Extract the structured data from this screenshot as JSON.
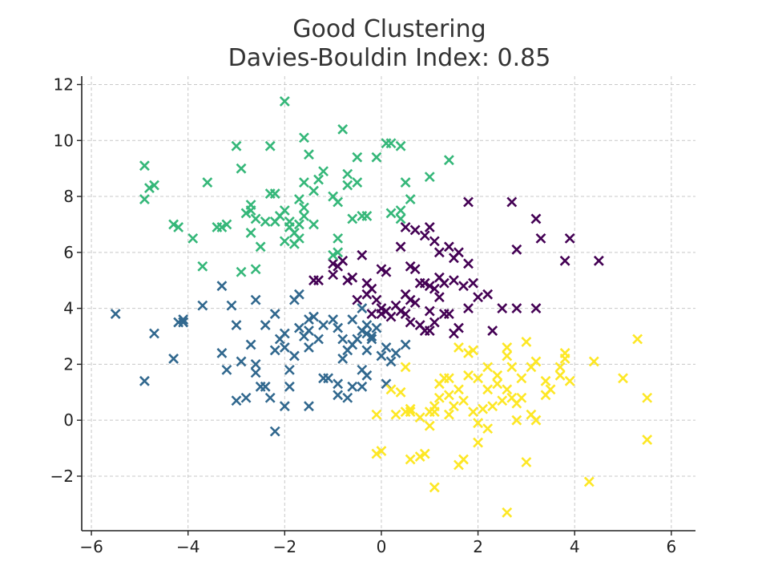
{
  "chart_data": {
    "type": "scatter",
    "title": "Good Clustering",
    "subtitle": "Davies-Bouldin Index: 0.85",
    "xlabel": "",
    "ylabel": "",
    "xlim": [
      -6.2,
      6.5
    ],
    "ylim": [
      -3.95,
      12.3
    ],
    "xticks": [
      -6,
      -4,
      -2,
      0,
      2,
      4,
      6
    ],
    "yticks": [
      -2,
      0,
      2,
      4,
      6,
      8,
      10,
      12
    ],
    "xtick_labels": [
      "−6",
      "−4",
      "−2",
      "0",
      "2",
      "4",
      "6"
    ],
    "ytick_labels": [
      "−2",
      "0",
      "2",
      "4",
      "6",
      "8",
      "10",
      "12"
    ],
    "grid": true,
    "legend": "none",
    "marker": "x",
    "series": [
      {
        "color": "#440154",
        "points": [
          [
            -1.4,
            5.0
          ],
          [
            -1.3,
            5.0
          ],
          [
            -1.0,
            5.2
          ],
          [
            -1.0,
            5.6
          ],
          [
            -0.9,
            5.5
          ],
          [
            -0.8,
            5.7
          ],
          [
            -0.6,
            5.1
          ],
          [
            -0.4,
            5.9
          ],
          [
            -0.3,
            4.9
          ],
          [
            -0.2,
            4.7
          ],
          [
            -0.1,
            4.3
          ],
          [
            0.0,
            5.4
          ],
          [
            0.1,
            5.3
          ],
          [
            0.0,
            4.0
          ],
          [
            0.1,
            3.9
          ],
          [
            0.0,
            3.8
          ],
          [
            -0.2,
            3.8
          ],
          [
            0.3,
            4.1
          ],
          [
            0.5,
            4.5
          ],
          [
            0.6,
            4.3
          ],
          [
            0.7,
            4.2
          ],
          [
            0.5,
            3.8
          ],
          [
            0.4,
            3.9
          ],
          [
            0.6,
            5.5
          ],
          [
            0.7,
            5.4
          ],
          [
            0.8,
            4.9
          ],
          [
            0.9,
            4.9
          ],
          [
            1.0,
            4.8
          ],
          [
            1.1,
            4.7
          ],
          [
            1.2,
            5.1
          ],
          [
            1.3,
            4.9
          ],
          [
            1.5,
            5.0
          ],
          [
            1.7,
            4.8
          ],
          [
            1.8,
            5.6
          ],
          [
            1.9,
            4.9
          ],
          [
            2.0,
            4.4
          ],
          [
            2.2,
            4.5
          ],
          [
            2.5,
            4.0
          ],
          [
            2.8,
            4.0
          ],
          [
            3.2,
            4.0
          ],
          [
            0.4,
            6.2
          ],
          [
            0.7,
            6.8
          ],
          [
            0.9,
            6.6
          ],
          [
            1.1,
            6.4
          ],
          [
            1.2,
            6.0
          ],
          [
            1.4,
            6.2
          ],
          [
            1.5,
            5.8
          ],
          [
            1.6,
            6.0
          ],
          [
            1.0,
            6.9
          ],
          [
            0.5,
            6.9
          ],
          [
            0.8,
            3.4
          ],
          [
            0.9,
            3.2
          ],
          [
            1.0,
            3.2
          ],
          [
            1.1,
            3.5
          ],
          [
            1.3,
            3.8
          ],
          [
            1.4,
            3.8
          ],
          [
            1.5,
            3.1
          ],
          [
            1.6,
            3.3
          ],
          [
            1.8,
            4.0
          ],
          [
            2.3,
            3.2
          ],
          [
            2.7,
            7.8
          ],
          [
            2.8,
            6.1
          ],
          [
            3.2,
            7.2
          ],
          [
            3.3,
            6.5
          ],
          [
            3.8,
            5.7
          ],
          [
            3.9,
            6.5
          ],
          [
            4.5,
            5.7
          ],
          [
            1.8,
            7.8
          ],
          [
            -0.5,
            4.3
          ],
          [
            -0.3,
            4.5
          ],
          [
            0.2,
            3.7
          ],
          [
            -0.7,
            5.0
          ],
          [
            1.0,
            3.9
          ],
          [
            0.6,
            3.5
          ],
          [
            1.2,
            4.4
          ]
        ]
      },
      {
        "color": "#31688e",
        "points": [
          [
            -5.5,
            3.8
          ],
          [
            -4.9,
            1.4
          ],
          [
            -4.7,
            3.1
          ],
          [
            -4.3,
            2.2
          ],
          [
            -4.2,
            3.5
          ],
          [
            -4.1,
            3.5
          ],
          [
            -4.1,
            3.6
          ],
          [
            -3.7,
            4.1
          ],
          [
            -3.3,
            4.8
          ],
          [
            -3.3,
            2.4
          ],
          [
            -3.2,
            1.8
          ],
          [
            -3.1,
            4.1
          ],
          [
            -3.0,
            3.4
          ],
          [
            -3.0,
            0.7
          ],
          [
            -2.8,
            0.8
          ],
          [
            -2.7,
            2.7
          ],
          [
            -2.6,
            2.0
          ],
          [
            -2.6,
            1.7
          ],
          [
            -2.5,
            1.2
          ],
          [
            -2.4,
            1.2
          ],
          [
            -2.6,
            4.3
          ],
          [
            -2.4,
            3.4
          ],
          [
            -2.2,
            3.8
          ],
          [
            -2.2,
            2.5
          ],
          [
            -2.1,
            2.9
          ],
          [
            -2.0,
            3.1
          ],
          [
            -2.0,
            2.6
          ],
          [
            -1.9,
            1.8
          ],
          [
            -1.9,
            1.2
          ],
          [
            -1.8,
            2.3
          ],
          [
            -1.7,
            3.3
          ],
          [
            -1.6,
            3.0
          ],
          [
            -1.5,
            3.2
          ],
          [
            -1.5,
            3.6
          ],
          [
            -1.5,
            2.6
          ],
          [
            -1.3,
            2.9
          ],
          [
            -1.2,
            1.5
          ],
          [
            -1.1,
            1.5
          ],
          [
            -0.9,
            1.3
          ],
          [
            -1.0,
            3.6
          ],
          [
            -0.9,
            3.3
          ],
          [
            -0.8,
            2.9
          ],
          [
            -0.7,
            2.5
          ],
          [
            -0.6,
            2.7
          ],
          [
            -0.5,
            2.9
          ],
          [
            -0.4,
            3.2
          ],
          [
            -0.3,
            2.5
          ],
          [
            -0.2,
            3.0
          ],
          [
            -0.1,
            3.3
          ],
          [
            0.0,
            2.3
          ],
          [
            0.1,
            2.6
          ],
          [
            0.2,
            2.1
          ],
          [
            0.5,
            2.7
          ],
          [
            -0.4,
            1.2
          ],
          [
            -0.3,
            1.6
          ],
          [
            -0.6,
            1.2
          ],
          [
            -0.6,
            3.6
          ],
          [
            -0.3,
            3.4
          ],
          [
            -0.2,
            2.9
          ],
          [
            -0.4,
            4.0
          ],
          [
            -1.8,
            4.3
          ],
          [
            -1.7,
            4.5
          ],
          [
            -2.3,
            0.8
          ],
          [
            -2.0,
            0.5
          ],
          [
            -2.2,
            -0.4
          ],
          [
            -1.5,
            0.5
          ],
          [
            -0.9,
            0.9
          ],
          [
            -0.7,
            0.8
          ],
          [
            -0.4,
            1.8
          ],
          [
            -0.8,
            2.2
          ],
          [
            0.1,
            1.3
          ],
          [
            -1.4,
            3.7
          ],
          [
            -2.9,
            2.1
          ],
          [
            -1.2,
            3.4
          ],
          [
            0.3,
            2.4
          ],
          [
            -0.3,
            3.1
          ]
        ]
      },
      {
        "color": "#35b779",
        "points": [
          [
            -4.9,
            9.1
          ],
          [
            -4.8,
            8.3
          ],
          [
            -4.7,
            8.4
          ],
          [
            -4.9,
            7.9
          ],
          [
            -4.3,
            7.0
          ],
          [
            -4.2,
            6.9
          ],
          [
            -3.9,
            6.5
          ],
          [
            -3.7,
            5.5
          ],
          [
            -3.6,
            8.5
          ],
          [
            -3.4,
            6.9
          ],
          [
            -3.3,
            6.9
          ],
          [
            -3.2,
            7.0
          ],
          [
            -3.0,
            9.8
          ],
          [
            -2.9,
            9.0
          ],
          [
            -2.9,
            5.3
          ],
          [
            -2.8,
            7.4
          ],
          [
            -2.7,
            7.7
          ],
          [
            -2.7,
            7.5
          ],
          [
            -2.7,
            6.7
          ],
          [
            -2.6,
            7.2
          ],
          [
            -2.6,
            5.4
          ],
          [
            -2.5,
            6.2
          ],
          [
            -2.3,
            9.8
          ],
          [
            -2.2,
            8.1
          ],
          [
            -2.2,
            7.1
          ],
          [
            -2.1,
            7.3
          ],
          [
            -2.0,
            6.4
          ],
          [
            -2.0,
            7.5
          ],
          [
            -1.9,
            7.1
          ],
          [
            -1.9,
            6.9
          ],
          [
            -1.8,
            6.3
          ],
          [
            -1.7,
            6.5
          ],
          [
            -1.7,
            7.0
          ],
          [
            -1.6,
            7.6
          ],
          [
            -1.6,
            7.3
          ],
          [
            -1.6,
            8.5
          ],
          [
            -1.5,
            9.5
          ],
          [
            -1.4,
            8.2
          ],
          [
            -1.3,
            8.6
          ],
          [
            -1.2,
            8.9
          ],
          [
            -1.0,
            8.0
          ],
          [
            -0.9,
            7.8
          ],
          [
            -0.9,
            6.5
          ],
          [
            -0.8,
            10.4
          ],
          [
            -0.7,
            8.8
          ],
          [
            -0.7,
            8.4
          ],
          [
            -0.6,
            7.2
          ],
          [
            -0.5,
            9.4
          ],
          [
            -0.5,
            8.5
          ],
          [
            -0.3,
            7.3
          ],
          [
            -0.1,
            9.4
          ],
          [
            0.1,
            9.9
          ],
          [
            0.2,
            9.9
          ],
          [
            0.2,
            7.4
          ],
          [
            0.4,
            7.2
          ],
          [
            0.4,
            9.8
          ],
          [
            0.5,
            8.5
          ],
          [
            0.6,
            7.9
          ],
          [
            0.4,
            7.5
          ],
          [
            1.0,
            8.7
          ],
          [
            1.4,
            9.3
          ],
          [
            -2.0,
            11.4
          ],
          [
            -1.6,
            10.1
          ],
          [
            -1.0,
            5.9
          ],
          [
            -0.9,
            6.0
          ],
          [
            -0.4,
            7.3
          ],
          [
            -1.7,
            7.9
          ],
          [
            -2.3,
            8.1
          ],
          [
            -1.4,
            7.0
          ],
          [
            -1.8,
            6.7
          ],
          [
            -2.4,
            7.1
          ]
        ]
      },
      {
        "color": "#fde725",
        "points": [
          [
            -0.1,
            0.2
          ],
          [
            -0.1,
            -1.2
          ],
          [
            0.0,
            -1.1
          ],
          [
            0.3,
            0.2
          ],
          [
            0.4,
            1.0
          ],
          [
            0.5,
            0.3
          ],
          [
            0.5,
            1.9
          ],
          [
            0.6,
            0.4
          ],
          [
            0.6,
            -1.4
          ],
          [
            0.8,
            0.1
          ],
          [
            0.8,
            -1.3
          ],
          [
            0.9,
            -1.2
          ],
          [
            1.0,
            -0.2
          ],
          [
            1.1,
            0.3
          ],
          [
            1.1,
            0.5
          ],
          [
            1.2,
            0.8
          ],
          [
            1.3,
            1.5
          ],
          [
            1.4,
            1.5
          ],
          [
            1.4,
            0.9
          ],
          [
            1.6,
            2.6
          ],
          [
            1.6,
            1.1
          ],
          [
            1.7,
            -1.4
          ],
          [
            1.6,
            -1.6
          ],
          [
            1.5,
            0.5
          ],
          [
            1.8,
            2.4
          ],
          [
            1.9,
            2.5
          ],
          [
            1.9,
            0.3
          ],
          [
            2.0,
            1.5
          ],
          [
            2.0,
            -0.1
          ],
          [
            2.0,
            -0.8
          ],
          [
            2.2,
            1.9
          ],
          [
            2.2,
            1.1
          ],
          [
            2.3,
            0.5
          ],
          [
            2.4,
            1.6
          ],
          [
            2.5,
            0.7
          ],
          [
            2.6,
            2.6
          ],
          [
            2.6,
            2.3
          ],
          [
            2.7,
            1.9
          ],
          [
            2.7,
            0.8
          ],
          [
            2.8,
            0.6
          ],
          [
            2.8,
            0.0
          ],
          [
            2.9,
            0.8
          ],
          [
            3.0,
            -1.5
          ],
          [
            3.1,
            1.9
          ],
          [
            3.1,
            0.2
          ],
          [
            3.2,
            2.1
          ],
          [
            3.2,
            0.0
          ],
          [
            3.4,
            1.4
          ],
          [
            3.4,
            0.9
          ],
          [
            3.5,
            1.1
          ],
          [
            3.7,
            1.6
          ],
          [
            3.7,
            1.9
          ],
          [
            3.8,
            2.2
          ],
          [
            3.8,
            2.4
          ],
          [
            3.9,
            1.4
          ],
          [
            4.4,
            2.1
          ],
          [
            4.3,
            -2.2
          ],
          [
            5.0,
            1.5
          ],
          [
            5.3,
            2.9
          ],
          [
            5.5,
            0.8
          ],
          [
            5.5,
            -0.7
          ],
          [
            2.6,
            -3.3
          ],
          [
            1.1,
            -2.4
          ],
          [
            0.6,
            0.3
          ],
          [
            1.4,
            0.2
          ],
          [
            2.2,
            -0.3
          ],
          [
            3.0,
            2.8
          ],
          [
            1.2,
            1.3
          ],
          [
            1.8,
            1.6
          ],
          [
            2.4,
            1.3
          ],
          [
            2.9,
            1.5
          ],
          [
            0.2,
            1.1
          ],
          [
            1.0,
            0.3
          ],
          [
            1.7,
            0.7
          ],
          [
            2.1,
            0.4
          ],
          [
            2.6,
            1.1
          ]
        ]
      }
    ]
  }
}
